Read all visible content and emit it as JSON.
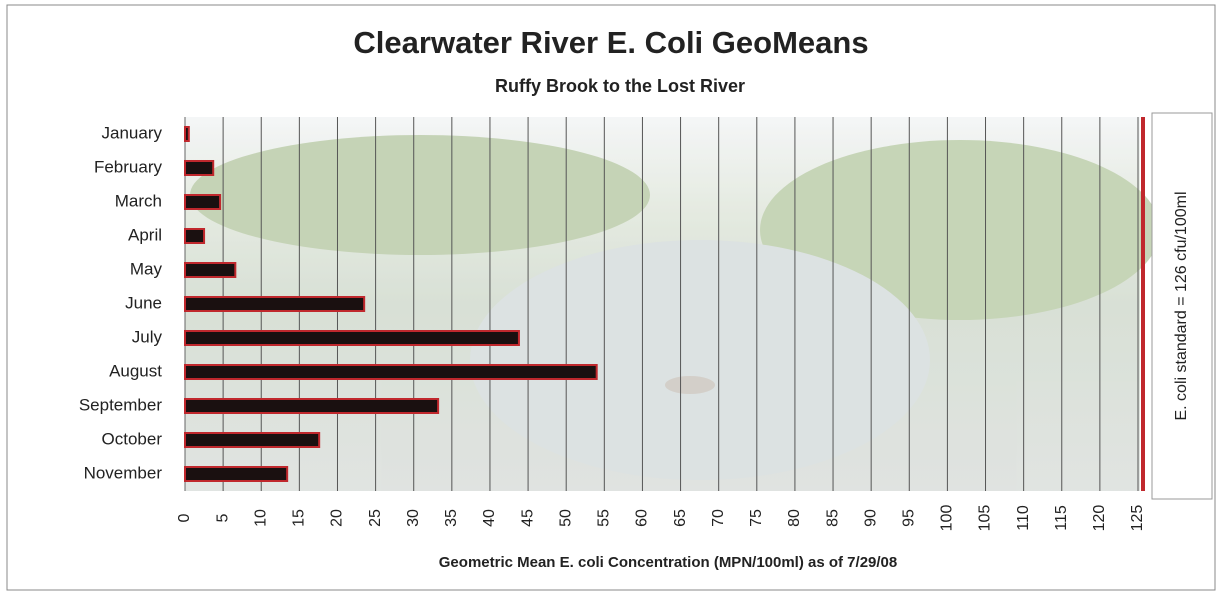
{
  "chart_data": {
    "type": "bar",
    "orientation": "horizontal",
    "title": "Clearwater River E. Coli GeoMeans",
    "subtitle": "Ruffy Brook to the Lost River",
    "x_label": "Geometric Mean E. coli Concentration (MPN/100ml) as of 7/29/08",
    "annotation": "E. coli standard = 126 cfu/100ml",
    "categories": [
      "January",
      "February",
      "March",
      "April",
      "May",
      "June",
      "July",
      "August",
      "September",
      "October",
      "November"
    ],
    "values": [
      0.5,
      3.7,
      4.6,
      2.5,
      6.6,
      23.5,
      43.8,
      54,
      33.2,
      17.6,
      13.4
    ],
    "color": "#1a1010",
    "edge_color": "#c0282d",
    "xlim": [
      0,
      125
    ],
    "xticks": [
      0,
      5,
      10,
      15,
      20,
      25,
      30,
      35,
      40,
      45,
      50,
      55,
      60,
      65,
      70,
      75,
      80,
      85,
      90,
      95,
      100,
      105,
      110,
      115,
      120,
      125
    ],
    "grid": true
  }
}
